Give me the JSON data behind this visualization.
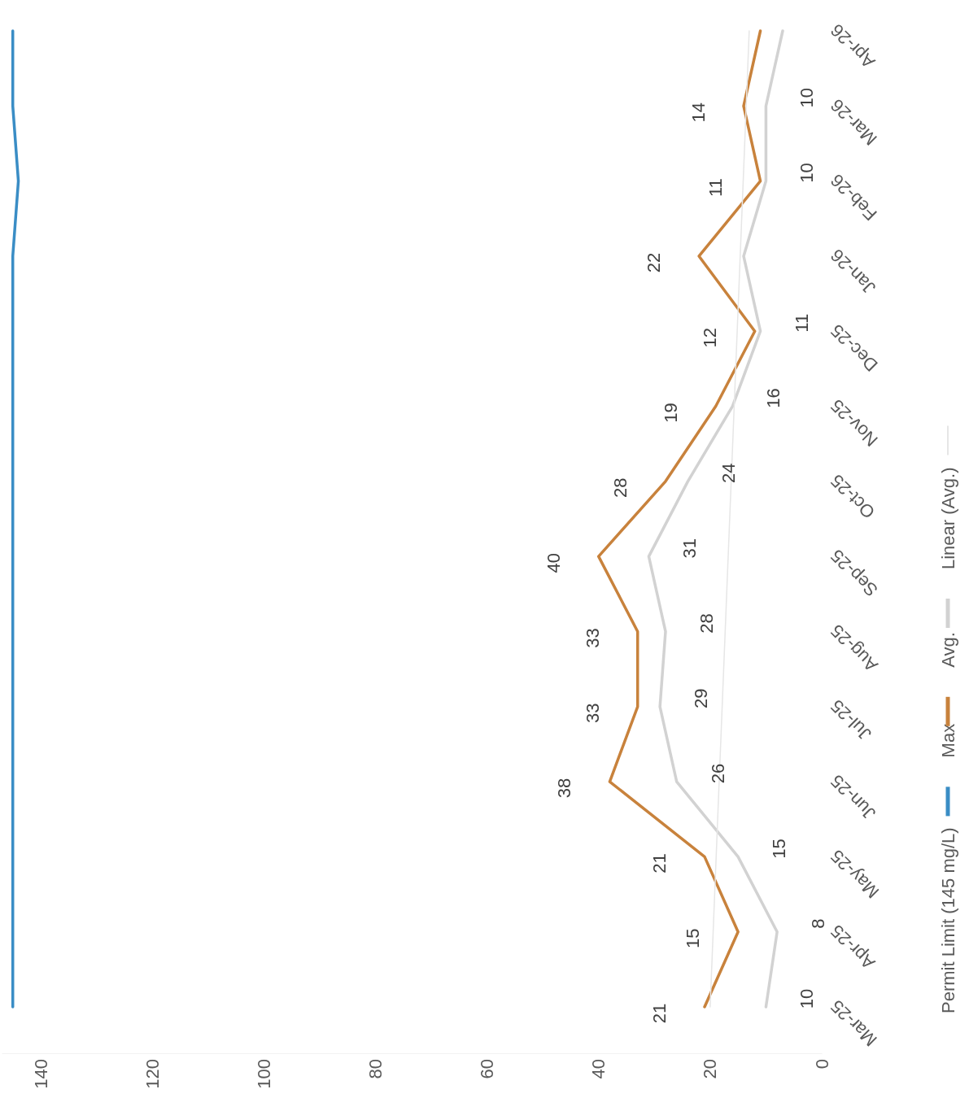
{
  "chart_data": {
    "type": "line",
    "orientation": "horizontal",
    "categories": [
      "Apr-26",
      "Mar-26",
      "Feb-26",
      "Jan-26",
      "Dec-25",
      "Nov-25",
      "Oct-25",
      "Sep-25",
      "Aug-25",
      "Jul-25",
      "Jun-25",
      "May-25",
      "Apr-25",
      "Mar-25"
    ],
    "xlim": [
      147,
      0
    ],
    "xticks": [
      0,
      20,
      40,
      60,
      80,
      100,
      120,
      140
    ],
    "legend": "right",
    "marker": "none",
    "series": [
      {
        "name": "Permit Limit (145 mg/L)",
        "color": "#3a8dc5",
        "values": [
          145,
          145,
          144,
          145,
          145,
          145,
          145,
          145,
          145,
          145,
          145,
          145,
          145,
          145
        ]
      },
      {
        "name": "Max",
        "color": "#c8823c",
        "values": [
          11,
          14,
          11,
          22,
          12,
          19,
          28,
          40,
          33,
          33,
          38,
          21,
          15,
          21
        ],
        "value_labels": [
          null,
          "14",
          "11",
          "22",
          "12",
          "19",
          "28",
          "40",
          "33",
          "33",
          "38",
          "21",
          "15",
          "21"
        ]
      },
      {
        "name": "Avg.",
        "color": "#d2d2d2",
        "values": [
          7,
          10,
          10,
          14,
          11,
          16,
          24,
          31,
          28,
          29,
          26,
          15,
          8,
          10
        ],
        "value_labels": [
          null,
          "10",
          "10",
          null,
          "11",
          "16",
          "24",
          "31",
          "28",
          "29",
          "26",
          "15",
          "8",
          "10"
        ]
      },
      {
        "name": "Linear (Avg.)",
        "color": "#e6e6e6",
        "x": [
          "Mar-25",
          "Apr-26"
        ],
        "values": [
          20,
          13
        ]
      }
    ]
  }
}
